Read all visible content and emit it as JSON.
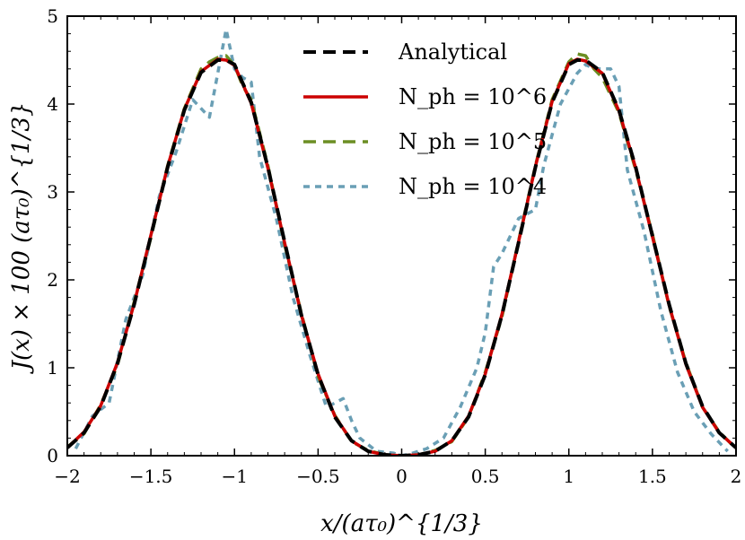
{
  "chart_data": {
    "type": "line",
    "title": "",
    "xlabel": "x/(aτ₀)^{1/3}",
    "ylabel": "J(x) × 100 (aτ₀)^{1/3}",
    "xlim": [
      -2,
      2
    ],
    "ylim": [
      0,
      5
    ],
    "xticks": [
      "−2",
      "−1.5",
      "−1",
      "−0.5",
      "0",
      "0.5",
      "1",
      "1.5",
      "2"
    ],
    "yticks": [
      "0",
      "1",
      "2",
      "3",
      "4",
      "5"
    ],
    "grid": false,
    "legend_position": "top-center",
    "series": [
      {
        "name": "Analytical",
        "color": "#000000",
        "dash": "dashed",
        "x": [
          -2.0,
          -1.9,
          -1.8,
          -1.7,
          -1.6,
          -1.5,
          -1.4,
          -1.3,
          -1.2,
          -1.1,
          -1.05,
          -1.0,
          -0.9,
          -0.8,
          -0.7,
          -0.6,
          -0.5,
          -0.4,
          -0.3,
          -0.2,
          -0.1,
          0.0,
          0.1,
          0.2,
          0.3,
          0.4,
          0.5,
          0.6,
          0.7,
          0.8,
          0.9,
          1.0,
          1.05,
          1.1,
          1.2,
          1.3,
          1.4,
          1.5,
          1.6,
          1.7,
          1.8,
          1.9,
          2.0
        ],
        "y": [
          0.09,
          0.26,
          0.56,
          1.05,
          1.72,
          2.5,
          3.28,
          3.93,
          4.36,
          4.5,
          4.5,
          4.45,
          4.02,
          3.28,
          2.43,
          1.6,
          0.92,
          0.44,
          0.17,
          0.05,
          0.01,
          0.0,
          0.01,
          0.05,
          0.17,
          0.44,
          0.92,
          1.6,
          2.43,
          3.28,
          4.02,
          4.45,
          4.5,
          4.5,
          4.36,
          3.93,
          3.28,
          2.5,
          1.72,
          1.05,
          0.56,
          0.26,
          0.09
        ]
      },
      {
        "name": "N_ph = 10^6",
        "color": "#cc0000",
        "dash": "solid",
        "x": [
          -2.0,
          -1.9,
          -1.8,
          -1.7,
          -1.6,
          -1.5,
          -1.4,
          -1.3,
          -1.2,
          -1.1,
          -1.05,
          -1.0,
          -0.9,
          -0.8,
          -0.7,
          -0.6,
          -0.5,
          -0.4,
          -0.3,
          -0.2,
          -0.1,
          0.0,
          0.1,
          0.2,
          0.3,
          0.4,
          0.5,
          0.6,
          0.7,
          0.8,
          0.9,
          1.0,
          1.05,
          1.1,
          1.2,
          1.3,
          1.4,
          1.5,
          1.6,
          1.7,
          1.8,
          1.9,
          2.0
        ],
        "y": [
          0.09,
          0.27,
          0.57,
          1.06,
          1.73,
          2.51,
          3.29,
          3.94,
          4.37,
          4.51,
          4.5,
          4.44,
          4.01,
          3.27,
          2.42,
          1.6,
          0.93,
          0.45,
          0.17,
          0.05,
          0.01,
          0.0,
          0.01,
          0.05,
          0.17,
          0.45,
          0.93,
          1.61,
          2.44,
          3.29,
          4.03,
          4.46,
          4.51,
          4.49,
          4.35,
          3.92,
          3.27,
          2.49,
          1.71,
          1.04,
          0.55,
          0.26,
          0.09
        ]
      },
      {
        "name": "N_ph = 10^5",
        "color": "#6b8e23",
        "dash": "dashed",
        "x": [
          -2.0,
          -1.9,
          -1.8,
          -1.7,
          -1.6,
          -1.5,
          -1.4,
          -1.3,
          -1.2,
          -1.15,
          -1.1,
          -1.05,
          -1.0,
          -0.95,
          -0.9,
          -0.8,
          -0.7,
          -0.6,
          -0.5,
          -0.4,
          -0.3,
          -0.2,
          -0.1,
          0.0,
          0.1,
          0.2,
          0.3,
          0.4,
          0.5,
          0.6,
          0.7,
          0.8,
          0.9,
          1.0,
          1.05,
          1.1,
          1.15,
          1.2,
          1.3,
          1.4,
          1.5,
          1.6,
          1.7,
          1.8,
          1.9,
          2.0
        ],
        "y": [
          0.1,
          0.25,
          0.58,
          1.03,
          1.75,
          2.48,
          3.3,
          3.95,
          4.4,
          4.48,
          4.53,
          4.55,
          4.44,
          4.2,
          4.05,
          3.3,
          2.4,
          1.62,
          0.9,
          0.46,
          0.16,
          0.06,
          0.01,
          0.0,
          0.01,
          0.06,
          0.16,
          0.44,
          0.95,
          1.58,
          2.45,
          3.3,
          4.05,
          4.48,
          4.57,
          4.55,
          4.4,
          4.3,
          3.9,
          3.25,
          2.52,
          1.7,
          1.06,
          0.55,
          0.27,
          0.08
        ]
      },
      {
        "name": "N_ph = 10^4",
        "color": "#6a9fb5",
        "dash": "dotted",
        "x": [
          -1.95,
          -1.85,
          -1.75,
          -1.65,
          -1.55,
          -1.45,
          -1.35,
          -1.25,
          -1.15,
          -1.05,
          -1.0,
          -0.95,
          -0.9,
          -0.85,
          -0.75,
          -0.65,
          -0.55,
          -0.45,
          -0.35,
          -0.3,
          -0.25,
          -0.15,
          -0.05,
          0.0,
          0.05,
          0.15,
          0.25,
          0.35,
          0.45,
          0.5,
          0.55,
          0.6,
          0.65,
          0.7,
          0.75,
          0.8,
          0.85,
          0.95,
          1.05,
          1.1,
          1.15,
          1.2,
          1.25,
          1.3,
          1.35,
          1.45,
          1.55,
          1.65,
          1.75,
          1.85,
          1.95
        ],
        "y": [
          0.08,
          0.45,
          0.6,
          1.55,
          2.05,
          2.95,
          3.45,
          4.05,
          3.85,
          4.85,
          4.4,
          4.3,
          4.25,
          3.4,
          2.7,
          1.8,
          1.15,
          0.55,
          0.65,
          0.4,
          0.2,
          0.05,
          0.03,
          0.0,
          0.02,
          0.08,
          0.2,
          0.55,
          1.0,
          1.4,
          2.15,
          2.3,
          2.5,
          2.7,
          2.75,
          2.8,
          3.3,
          4.0,
          4.35,
          4.45,
          4.4,
          4.4,
          4.4,
          4.2,
          3.25,
          2.55,
          1.65,
          0.95,
          0.5,
          0.25,
          0.05
        ]
      }
    ]
  }
}
